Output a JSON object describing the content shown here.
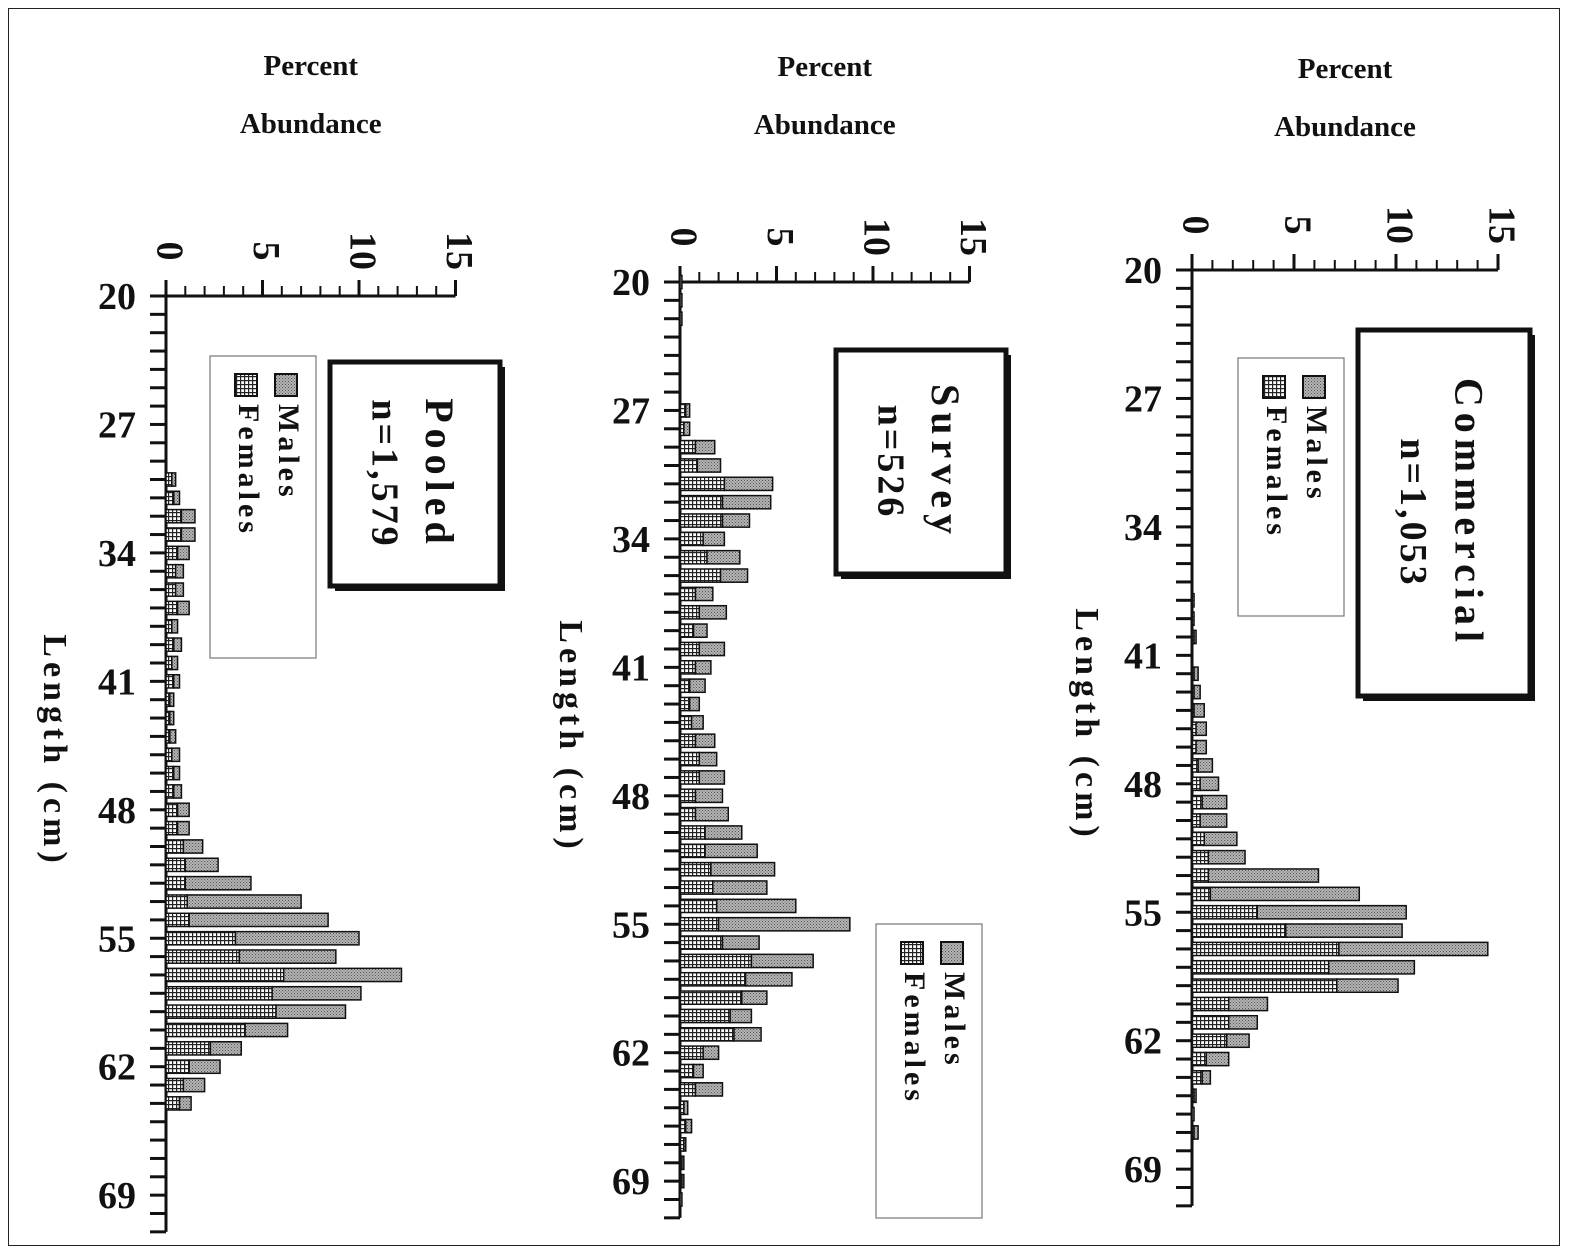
{
  "colors": {
    "males_fill": "#a8a8a8",
    "females_fill": "#d8d8d8",
    "stroke": "#111111"
  },
  "chart_data": [
    {
      "type": "bar",
      "orientation": "horizontal-stacked",
      "title": "Pooled",
      "sample_size": "n=1,579",
      "xlabel": "Percent Abundance",
      "xlabel_lines": [
        "Percent",
        "Abundance"
      ],
      "ylabel": "Length (cm)",
      "xlim": [
        0,
        15
      ],
      "x_ticks": [
        "0",
        "5",
        "10",
        "15"
      ],
      "ylim": [
        20,
        71
      ],
      "y_ticks": [
        "20",
        "27",
        "34",
        "41",
        "48",
        "55",
        "62",
        "69"
      ],
      "legend": {
        "placement": "top-right",
        "entries": [
          "Males",
          "Females"
        ]
      },
      "categories": [
        30,
        31,
        32,
        33,
        34,
        35,
        36,
        37,
        38,
        39,
        40,
        41,
        42,
        43,
        44,
        45,
        46,
        47,
        48,
        49,
        50,
        51,
        52,
        53,
        54,
        55,
        56,
        57,
        58,
        59,
        60,
        61,
        62,
        63,
        64
      ],
      "series": [
        {
          "name": "Males",
          "values": [
            0.2,
            0.3,
            0.7,
            0.7,
            0.6,
            0.4,
            0.4,
            0.6,
            0.3,
            0.4,
            0.3,
            0.3,
            0.2,
            0.2,
            0.3,
            0.4,
            0.3,
            0.4,
            0.6,
            0.6,
            1.0,
            1.7,
            3.4,
            5.9,
            7.2,
            6.4,
            5.0,
            6.1,
            4.6,
            3.6,
            2.2,
            1.6,
            1.6,
            1.1,
            0.6
          ]
        },
        {
          "name": "Females",
          "values": [
            0.3,
            0.4,
            0.8,
            0.8,
            0.6,
            0.5,
            0.5,
            0.6,
            0.3,
            0.4,
            0.3,
            0.4,
            0.2,
            0.2,
            0.2,
            0.3,
            0.4,
            0.4,
            0.6,
            0.6,
            0.9,
            1.0,
            1.0,
            1.1,
            1.2,
            3.6,
            3.8,
            6.1,
            5.5,
            5.7,
            4.1,
            2.3,
            1.2,
            0.9,
            0.7
          ]
        }
      ]
    },
    {
      "type": "bar",
      "orientation": "horizontal-stacked",
      "title": "Survey",
      "sample_size": "n=526",
      "xlabel": "Percent Abundance",
      "xlabel_lines": [
        "Percent",
        "Abundance"
      ],
      "ylabel": "Length (cm)",
      "xlim": [
        0,
        15
      ],
      "x_ticks": [
        "0",
        "5",
        "10",
        "15"
      ],
      "ylim": [
        20,
        71
      ],
      "y_ticks": [
        "20",
        "27",
        "34",
        "41",
        "48",
        "55",
        "62",
        "69"
      ],
      "legend": {
        "placement": "bottom-right",
        "entries": [
          "Males",
          "Females"
        ]
      },
      "categories": [
        20,
        21,
        22,
        27,
        28,
        29,
        30,
        31,
        32,
        33,
        34,
        35,
        36,
        37,
        38,
        39,
        40,
        41,
        42,
        43,
        44,
        45,
        46,
        47,
        48,
        49,
        50,
        51,
        52,
        53,
        54,
        55,
        56,
        57,
        58,
        59,
        60,
        61,
        62,
        63,
        64,
        65,
        66,
        67,
        68,
        69,
        70
      ],
      "series": [
        {
          "name": "Males",
          "values": [
            0.1,
            0.1,
            0.1,
            0.2,
            0.3,
            1.0,
            1.2,
            2.5,
            2.5,
            1.4,
            1.1,
            1.7,
            1.4,
            0.9,
            1.4,
            0.7,
            1.3,
            0.8,
            0.8,
            0.5,
            0.6,
            1.0,
            0.9,
            1.3,
            1.4,
            1.7,
            1.9,
            2.7,
            3.3,
            2.8,
            4.1,
            6.8,
            1.9,
            3.2,
            2.4,
            1.3,
            1.1,
            1.4,
            0.8,
            0.5,
            1.4,
            0.2,
            0.3,
            0.1,
            0.1,
            0.1,
            0.1
          ]
        },
        {
          "name": "Females",
          "values": [
            0.0,
            0.0,
            0.0,
            0.3,
            0.2,
            0.8,
            0.9,
            2.3,
            2.2,
            2.2,
            1.2,
            1.4,
            2.1,
            0.8,
            1.0,
            0.7,
            1.0,
            0.8,
            0.5,
            0.5,
            0.6,
            0.8,
            1.0,
            1.0,
            0.8,
            0.8,
            1.3,
            1.3,
            1.6,
            1.7,
            1.9,
            2.0,
            2.2,
            3.7,
            3.4,
            3.2,
            2.6,
            2.8,
            1.2,
            0.7,
            0.8,
            0.2,
            0.3,
            0.2,
            0.1,
            0.1,
            0.0
          ]
        }
      ]
    },
    {
      "type": "bar",
      "orientation": "horizontal-stacked",
      "title": "Commercial",
      "sample_size": "n=1,053",
      "xlabel": "Percent Abundance",
      "xlabel_lines": [
        "Percent",
        "Abundance"
      ],
      "ylabel": "Length (cm)",
      "xlim": [
        0,
        15
      ],
      "x_ticks": [
        "0",
        "5",
        "10",
        "15"
      ],
      "ylim": [
        20,
        71
      ],
      "y_ticks": [
        "20",
        "27",
        "34",
        "41",
        "48",
        "55",
        "62",
        "69"
      ],
      "legend": {
        "placement": "top-right",
        "entries": [
          "Males",
          "Females"
        ]
      },
      "categories": [
        38,
        39,
        40,
        42,
        43,
        44,
        45,
        46,
        47,
        48,
        49,
        50,
        51,
        52,
        53,
        54,
        55,
        56,
        57,
        58,
        59,
        60,
        61,
        62,
        63,
        64,
        65,
        66,
        67
      ],
      "series": [
        {
          "name": "Males",
          "values": [
            0.0,
            0.0,
            0.1,
            0.2,
            0.3,
            0.5,
            0.5,
            0.5,
            0.7,
            0.9,
            1.2,
            1.3,
            1.6,
            1.8,
            5.4,
            7.3,
            7.3,
            5.7,
            7.3,
            4.2,
            3.0,
            1.9,
            1.4,
            1.1,
            1.1,
            0.4,
            0.1,
            0.1,
            0.2
          ]
        },
        {
          "name": "Females",
          "values": [
            0.1,
            0.1,
            0.1,
            0.1,
            0.1,
            0.1,
            0.2,
            0.2,
            0.3,
            0.4,
            0.5,
            0.4,
            0.6,
            0.8,
            0.8,
            0.9,
            3.2,
            4.6,
            7.2,
            6.7,
            7.1,
            1.8,
            1.8,
            1.7,
            0.7,
            0.5,
            0.1,
            0.0,
            0.1
          ]
        }
      ]
    }
  ]
}
